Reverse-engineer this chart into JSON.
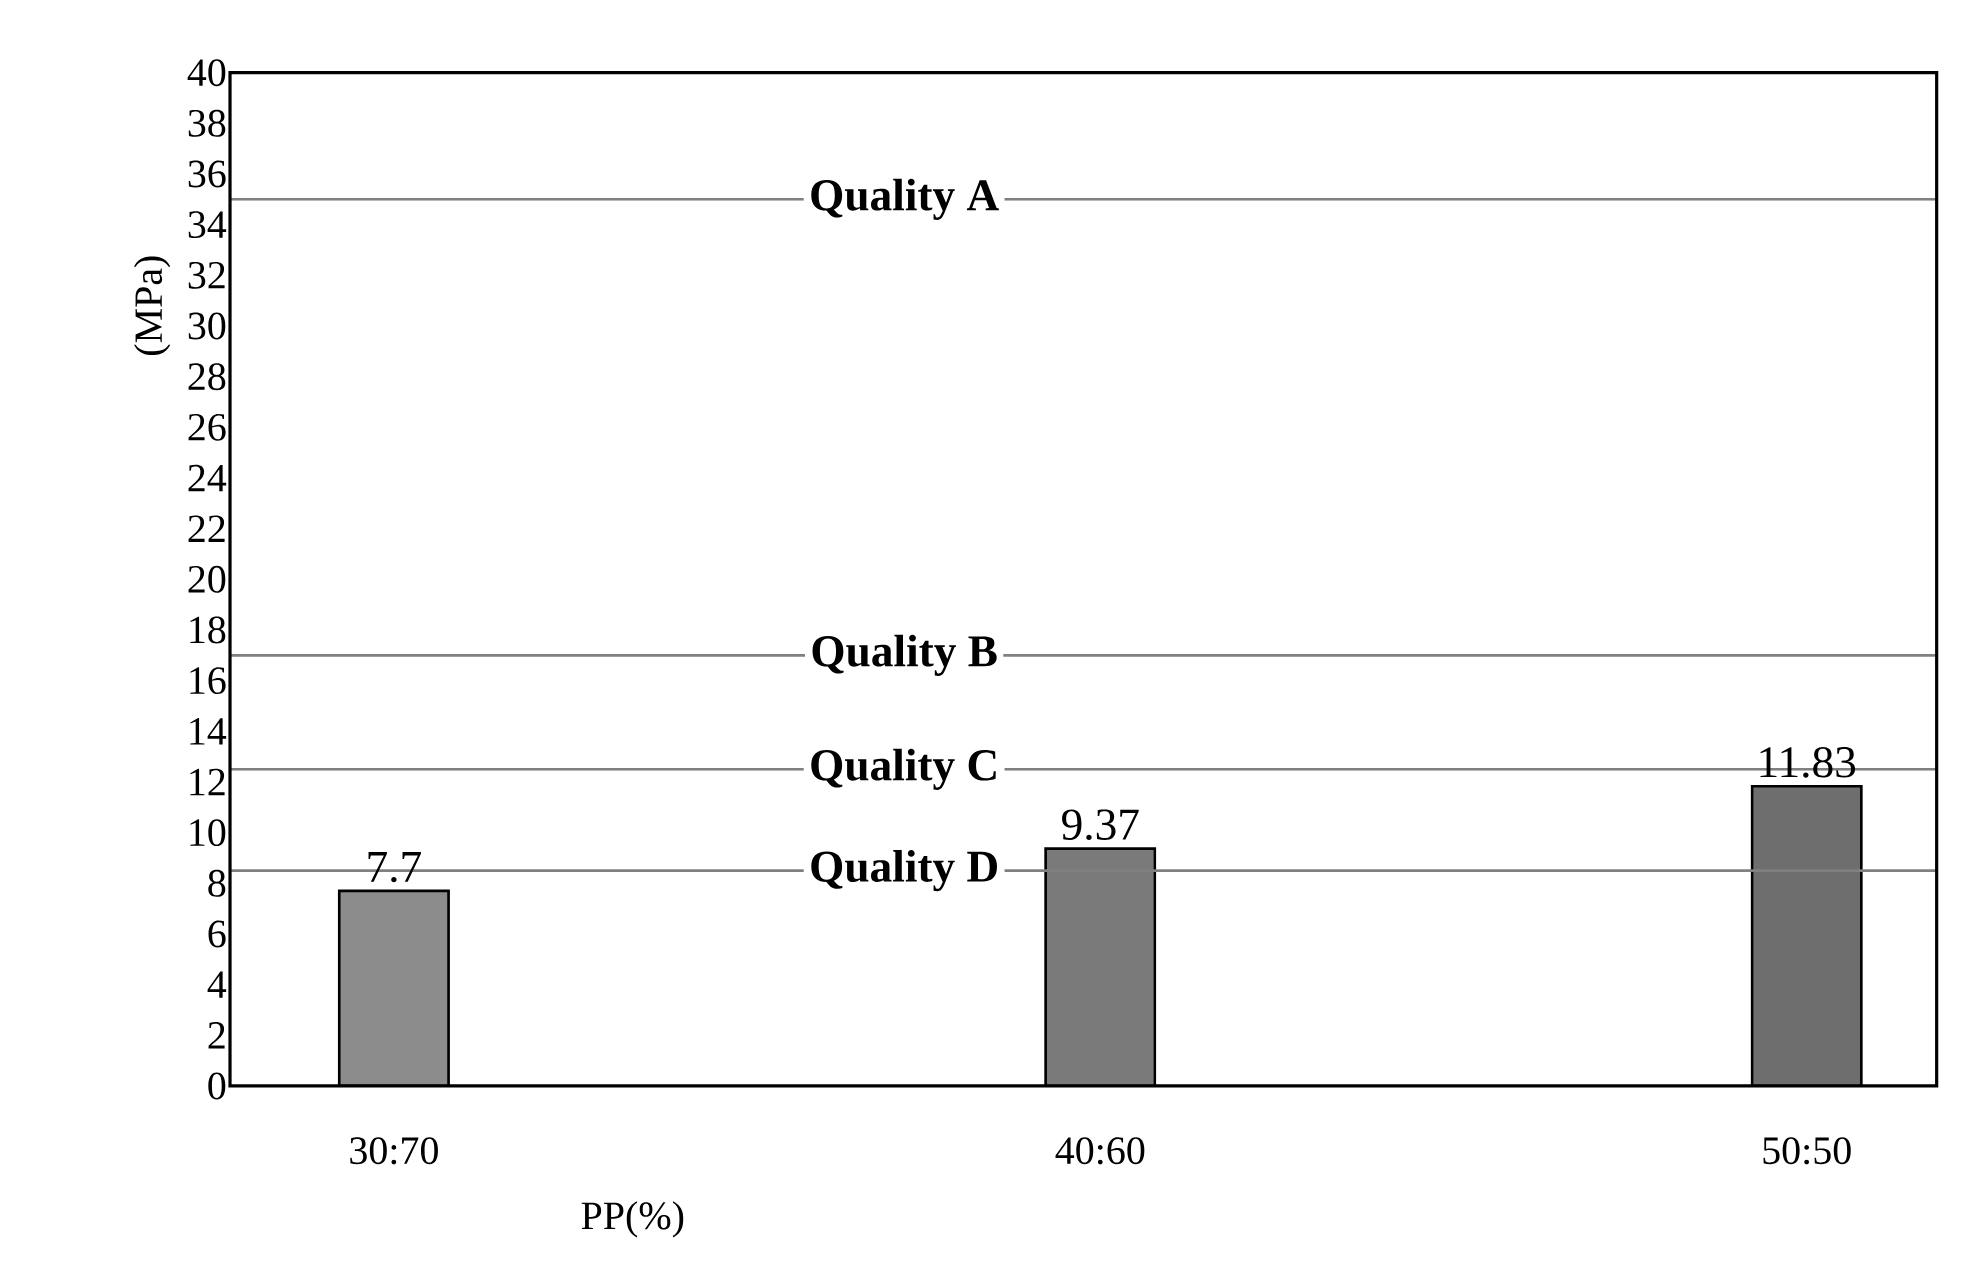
{
  "chart_data": {
    "type": "bar",
    "xlabel": "PP(%)",
    "ylabel": "(MPa)",
    "categories": [
      "30:70",
      "40:60",
      "50:50"
    ],
    "values": [
      7.7,
      9.37,
      11.83
    ],
    "colors": [
      "#8c8c8c",
      "#7a7a7a",
      "#6e6e6e"
    ],
    "ylim": [
      0,
      40
    ],
    "yticks": [
      0,
      2,
      4,
      6,
      8,
      10,
      12,
      14,
      16,
      18,
      20,
      22,
      24,
      26,
      28,
      30,
      32,
      34,
      36,
      38,
      40
    ],
    "data_labels": true,
    "grid": false,
    "ref_lines": [
      {
        "axis": "y",
        "value": 35,
        "label": "Quality A",
        "color": "#808080"
      },
      {
        "axis": "y",
        "value": 17,
        "label": "Quality B",
        "color": "#808080"
      },
      {
        "axis": "y",
        "value": 12.5,
        "label": "Quality C",
        "color": "#808080"
      },
      {
        "axis": "y",
        "value": 8.5,
        "label": "Quality D",
        "color": "#808080"
      }
    ]
  }
}
